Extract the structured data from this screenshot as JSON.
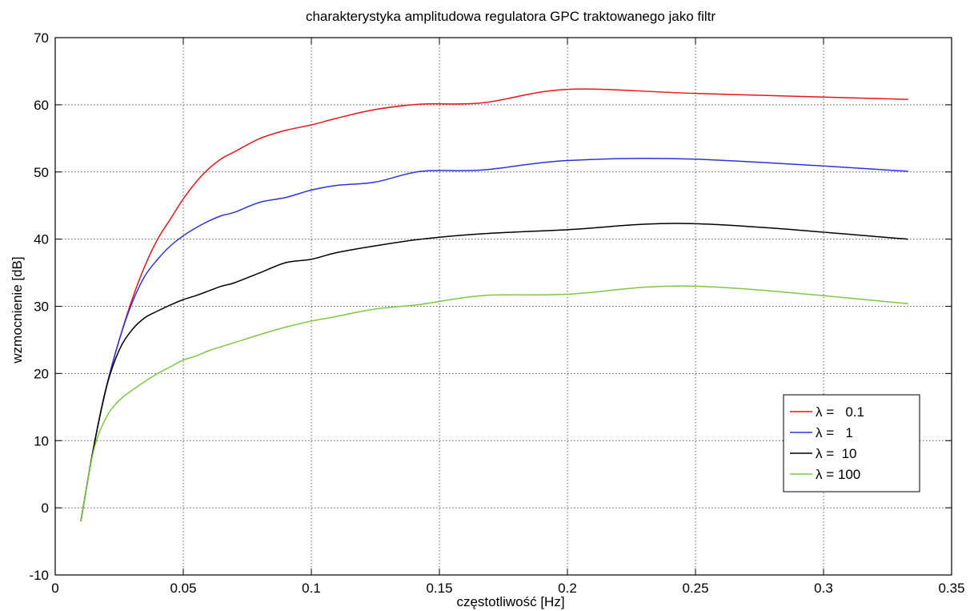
{
  "chart_data": {
    "type": "line",
    "title": "charakterystyka amplitudowa regulatora GPC traktowanego jako filtr",
    "xlabel": "częstotliwość [Hz]",
    "ylabel": "wzmocnienie [dB]",
    "xlim": [
      0,
      0.35
    ],
    "ylim": [
      -10,
      70
    ],
    "xticks": [
      0,
      0.05,
      0.1,
      0.15,
      0.2,
      0.25,
      0.3,
      0.35
    ],
    "xtick_labels": [
      "0",
      "0.05",
      "0.1",
      "0.15",
      "0.2",
      "0.25",
      "0.3",
      "0.35"
    ],
    "yticks": [
      -10,
      0,
      10,
      20,
      30,
      40,
      50,
      60,
      70
    ],
    "ytick_labels": [
      "-10",
      "0",
      "10",
      "20",
      "30",
      "40",
      "50",
      "60",
      "70"
    ],
    "grid": true,
    "grid_style": "dotted",
    "legend_position": "lower-right",
    "series": [
      {
        "name": "λ =   0.1",
        "color": "#e8151b",
        "x": [
          0.01,
          0.015,
          0.02,
          0.025,
          0.03,
          0.035,
          0.04,
          0.045,
          0.05,
          0.055,
          0.06,
          0.065,
          0.07,
          0.08,
          0.09,
          0.1,
          0.11,
          0.125,
          0.143,
          0.167,
          0.2,
          0.25,
          0.333
        ],
        "y": [
          -2,
          9,
          18,
          25,
          31,
          36,
          40,
          43,
          46,
          48.5,
          50.5,
          52,
          53,
          55,
          56.2,
          57,
          58,
          59.3,
          60.1,
          60.3,
          62.3,
          61.7,
          60.8
        ]
      },
      {
        "name": "λ =   1",
        "color": "#2b35d6",
        "x": [
          0.01,
          0.015,
          0.02,
          0.025,
          0.03,
          0.035,
          0.04,
          0.045,
          0.05,
          0.055,
          0.06,
          0.065,
          0.07,
          0.08,
          0.09,
          0.1,
          0.11,
          0.125,
          0.143,
          0.167,
          0.2,
          0.25,
          0.333
        ],
        "y": [
          -2,
          9,
          18,
          25,
          30.5,
          34.5,
          37,
          39,
          40.5,
          41.7,
          42.7,
          43.5,
          44,
          45.5,
          46.2,
          47.3,
          48,
          48.5,
          50.1,
          50.3,
          51.7,
          51.9,
          50.1
        ]
      },
      {
        "name": "λ =  10",
        "color": "#000000",
        "x": [
          0.01,
          0.015,
          0.02,
          0.025,
          0.03,
          0.035,
          0.04,
          0.045,
          0.05,
          0.055,
          0.06,
          0.065,
          0.07,
          0.08,
          0.09,
          0.1,
          0.11,
          0.125,
          0.143,
          0.167,
          0.2,
          0.25,
          0.333
        ],
        "y": [
          -2,
          9,
          18,
          23.5,
          26.5,
          28.3,
          29.3,
          30.2,
          31,
          31.6,
          32.3,
          33,
          33.5,
          35,
          36.5,
          37,
          38,
          39,
          40,
          40.8,
          41.4,
          42.3,
          40
        ]
      },
      {
        "name": "λ = 100",
        "color": "#7ec842",
        "x": [
          0.01,
          0.015,
          0.02,
          0.025,
          0.03,
          0.035,
          0.04,
          0.045,
          0.05,
          0.055,
          0.06,
          0.065,
          0.07,
          0.08,
          0.09,
          0.1,
          0.11,
          0.125,
          0.143,
          0.167,
          0.2,
          0.25,
          0.333
        ],
        "y": [
          -2,
          8.5,
          13.5,
          16,
          17.5,
          18.8,
          20,
          21,
          22,
          22.6,
          23.4,
          24,
          24.6,
          25.8,
          26.9,
          27.8,
          28.5,
          29.6,
          30.3,
          31.6,
          31.8,
          33,
          30.4
        ]
      }
    ]
  }
}
